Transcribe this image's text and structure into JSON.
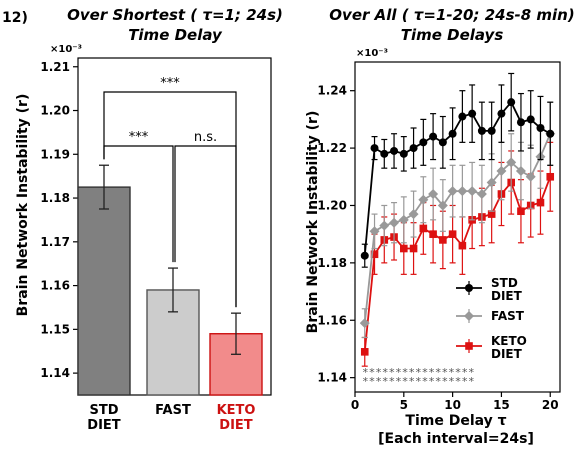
{
  "panel_label": "12)",
  "chart_data": [
    {
      "type": "bar",
      "title": "Over Shortest ( τ=1; 24s)",
      "title2": "Time Delay",
      "ylabel": "Brain Network Instability (r)",
      "y_multiplier": "×10⁻³",
      "ylim": [
        1.135,
        1.212
      ],
      "yticks": [
        "1.14",
        "1.15",
        "1.16",
        "1.17",
        "1.18",
        "1.19",
        "1.20",
        "1.21"
      ],
      "categories": [
        {
          "line1": "STD",
          "line2": "DIET"
        },
        {
          "line1": "FAST",
          "line2": ""
        },
        {
          "line1": "KETO",
          "line2": "DIET"
        }
      ],
      "values": [
        1.1825,
        1.159,
        1.149
      ],
      "errors": [
        0.005,
        0.005,
        0.0047
      ],
      "colors": {
        "bar_fill": [
          "#808080",
          "#cccccc",
          "#f28b8b"
        ],
        "bar_edge": [
          "#333333",
          "#555555",
          "#cc1111"
        ],
        "label": [
          "#000000",
          "#000000",
          "#cc1111"
        ]
      },
      "significance": [
        {
          "from": 0,
          "to": 2,
          "label": "***"
        },
        {
          "from": 0,
          "to": 1,
          "label": "***"
        },
        {
          "from": 1,
          "to": 2,
          "label": "n.s."
        }
      ]
    },
    {
      "type": "line",
      "title": "Over All ( τ=1-20; 24s-8 min)",
      "title2": "Time Delays",
      "ylabel": "Brain Network Instability (r)",
      "xlabel": "Time Delay τ",
      "xlabel2": "[Each interval=24s]",
      "y_multiplier": "×10⁻³",
      "xlim": [
        0,
        21
      ],
      "ylim": [
        1.135,
        1.25
      ],
      "xticks": [
        "0",
        "5",
        "10",
        "15",
        "20"
      ],
      "yticks": [
        "1.14",
        "1.16",
        "1.18",
        "1.20",
        "1.22",
        "1.24"
      ],
      "x": [
        1,
        2,
        3,
        4,
        5,
        6,
        7,
        8,
        9,
        10,
        11,
        12,
        13,
        14,
        15,
        16,
        17,
        18,
        19,
        20
      ],
      "series": [
        {
          "name": "STD DIET",
          "color": "#000000",
          "marker": "circle",
          "values": [
            1.1825,
            1.22,
            1.218,
            1.219,
            1.218,
            1.22,
            1.222,
            1.224,
            1.222,
            1.225,
            1.231,
            1.232,
            1.226,
            1.226,
            1.232,
            1.236,
            1.229,
            1.23,
            1.227,
            1.225
          ],
          "errors": [
            0.004,
            0.004,
            0.005,
            0.006,
            0.006,
            0.007,
            0.008,
            0.008,
            0.009,
            0.009,
            0.009,
            0.01,
            0.01,
            0.01,
            0.01,
            0.01,
            0.01,
            0.01,
            0.011,
            0.011
          ]
        },
        {
          "name": "FAST",
          "color": "#999999",
          "marker": "diamond",
          "values": [
            1.159,
            1.191,
            1.193,
            1.194,
            1.195,
            1.197,
            1.202,
            1.204,
            1.2,
            1.205,
            1.205,
            1.205,
            1.204,
            1.208,
            1.212,
            1.215,
            1.212,
            1.21,
            1.217,
            1.225
          ],
          "errors": [
            0.005,
            0.006,
            0.007,
            0.007,
            0.008,
            0.008,
            0.008,
            0.009,
            0.009,
            0.009,
            0.009,
            0.01,
            0.01,
            0.01,
            0.01,
            0.01,
            0.01,
            0.011,
            0.011,
            0.011
          ]
        },
        {
          "name": "KETO DIET",
          "color": "#dd1111",
          "marker": "square",
          "values": [
            1.149,
            1.183,
            1.188,
            1.189,
            1.185,
            1.185,
            1.192,
            1.19,
            1.188,
            1.19,
            1.186,
            1.195,
            1.196,
            1.197,
            1.204,
            1.208,
            1.198,
            1.2,
            1.201,
            1.21
          ],
          "errors": [
            0.005,
            0.007,
            0.008,
            0.008,
            0.009,
            0.009,
            0.009,
            0.01,
            0.01,
            0.01,
            0.01,
            0.01,
            0.01,
            0.01,
            0.011,
            0.011,
            0.011,
            0.011,
            0.011,
            0.012
          ]
        }
      ],
      "legend": [
        {
          "line1": "STD",
          "line2": "DIET"
        },
        {
          "line1": "FAST",
          "line2": ""
        },
        {
          "line1": "KETO",
          "line2": "DIET"
        }
      ],
      "legend_position": "lower-right",
      "star_rows": [
        "*****************",
        "*****************"
      ]
    }
  ]
}
